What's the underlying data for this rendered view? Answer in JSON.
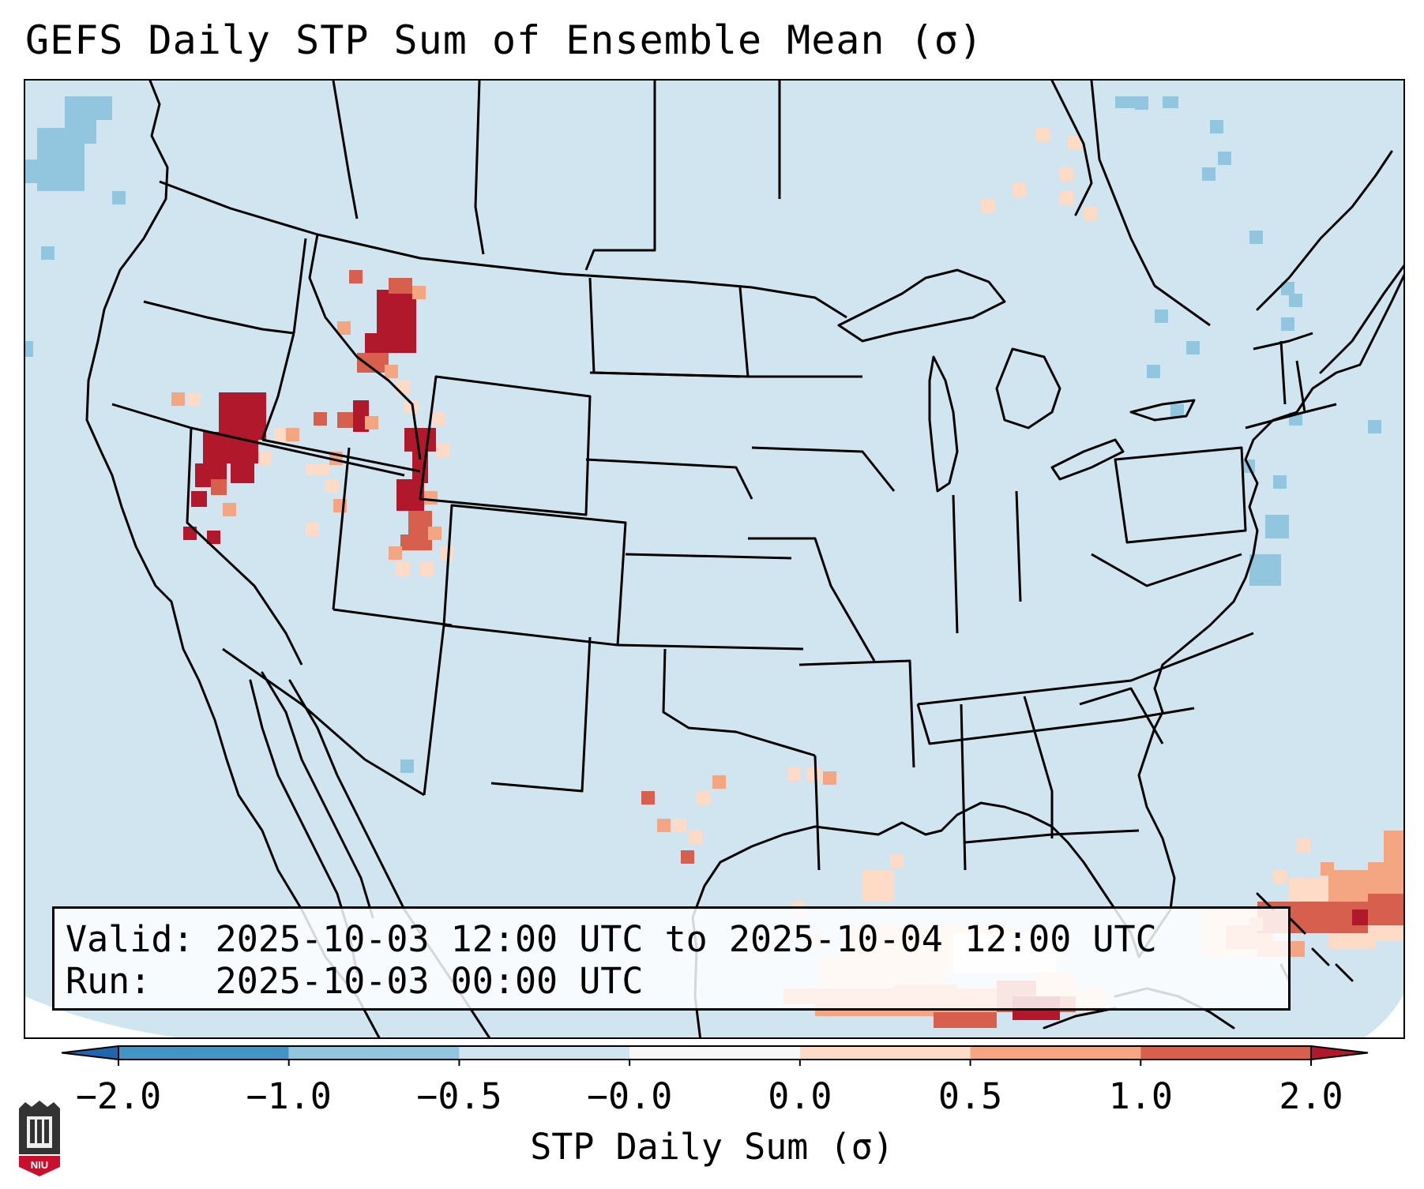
{
  "title": "GEFS Daily STP Sum of Ensemble Mean (σ)",
  "info": {
    "valid_line": "Valid: 2025-10-03 12:00 UTC to 2025-10-04 12:00 UTC",
    "run_line": "Run:   2025-10-03 00:00 UTC"
  },
  "colorbar": {
    "label": "STP Daily Sum (σ)",
    "tick_labels": [
      "−2.0",
      "−1.0",
      "−0.5",
      "−0.0",
      "0.0",
      "0.5",
      "1.0",
      "2.0"
    ],
    "bin_colors": [
      "#4393c3",
      "#92c5de",
      "#d1e5f0",
      "#f7f7f7",
      "#fddbc7",
      "#f4a582",
      "#d6604d"
    ],
    "extend_low_color": "#2166ac",
    "extend_high_color": "#b2182b"
  },
  "map": {
    "background_color": "#d1e5f0",
    "features": [
      "state-borders",
      "coastlines",
      "country-borders"
    ],
    "highlight_regions": [
      {
        "name": "nevada-northeast",
        "level": "2.0+"
      },
      {
        "name": "wyoming-idaho-border",
        "level": "2.0+"
      },
      {
        "name": "utah-east",
        "level": "1.0-2.0"
      },
      {
        "name": "gulf-south-cuba",
        "level": "1.0-2.0"
      },
      {
        "name": "bahamas-atlantic",
        "level": "1.0-2.0"
      }
    ]
  },
  "logo": {
    "text": "NIU"
  }
}
